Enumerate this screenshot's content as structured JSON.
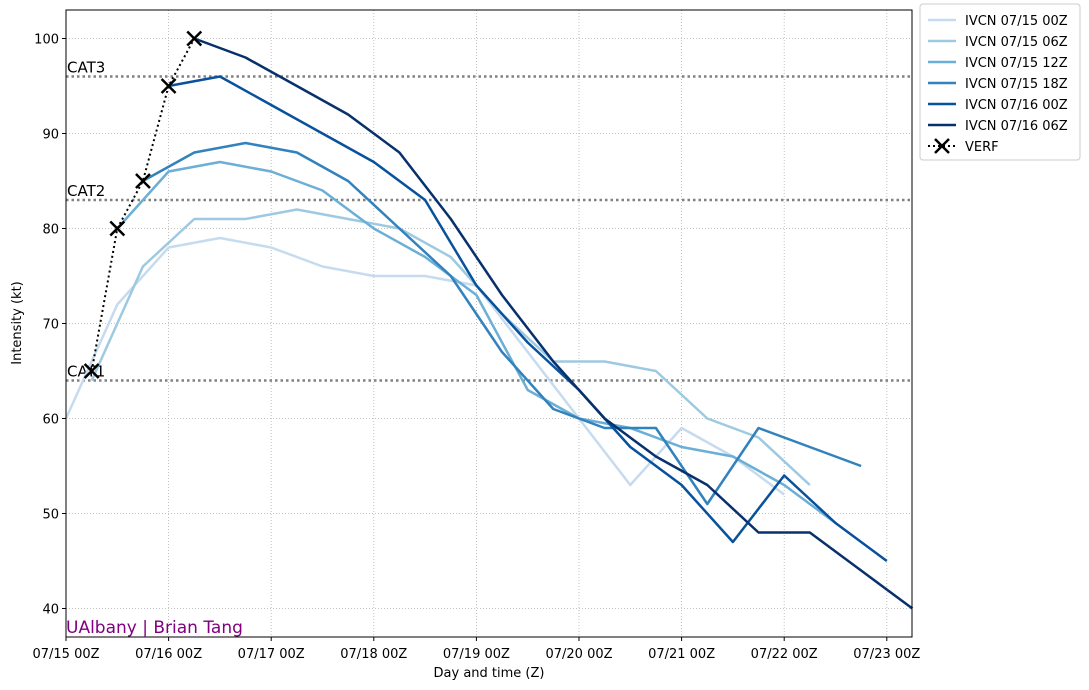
{
  "chart_data": {
    "type": "line",
    "title": "",
    "xlabel": "Day and time (Z)",
    "ylabel": "Intensity (kt)",
    "xlim": [
      "07/15 00Z",
      "07/23 06Z"
    ],
    "ylim": [
      37,
      103
    ],
    "x_ticks": [
      "07/15 00Z",
      "07/16 00Z",
      "07/17 00Z",
      "07/18 00Z",
      "07/19 00Z",
      "07/20 00Z",
      "07/21 00Z",
      "07/22 00Z",
      "07/23 00Z"
    ],
    "y_ticks": [
      40,
      50,
      60,
      70,
      80,
      90,
      100
    ],
    "grid": true,
    "legend_position": "outside-top-right",
    "thresholds": [
      {
        "label": "CAT1",
        "value": 64
      },
      {
        "label": "CAT2",
        "value": 83
      },
      {
        "label": "CAT3",
        "value": 96
      }
    ],
    "credit": "UAlbany | Brian Tang",
    "series": [
      {
        "name": "IVCN 07/15 00Z",
        "color": "#c6dbef",
        "x": [
          "07/15 00Z",
          "07/15 12Z",
          "07/16 00Z",
          "07/16 12Z",
          "07/17 00Z",
          "07/17 12Z",
          "07/18 00Z",
          "07/18 12Z",
          "07/19 00Z",
          "07/19 12Z",
          "07/20 00Z",
          "07/20 12Z",
          "07/21 00Z",
          "07/21 12Z",
          "07/22 00Z"
        ],
        "y": [
          60,
          72,
          78,
          79,
          78,
          76,
          75,
          75,
          74,
          67,
          60,
          53,
          59,
          56,
          52
        ]
      },
      {
        "name": "IVCN 07/15 06Z",
        "color": "#9ecae1",
        "x": [
          "07/15 06Z",
          "07/15 18Z",
          "07/16 06Z",
          "07/16 18Z",
          "07/17 06Z",
          "07/17 18Z",
          "07/18 06Z",
          "07/18 18Z",
          "07/19 06Z",
          "07/19 18Z",
          "07/20 06Z",
          "07/20 18Z",
          "07/21 06Z",
          "07/21 18Z",
          "07/22 06Z"
        ],
        "y": [
          64,
          76,
          81,
          81,
          82,
          81,
          80,
          77,
          71,
          66,
          66,
          65,
          60,
          58,
          53
        ]
      },
      {
        "name": "IVCN 07/15 12Z",
        "color": "#6baed6",
        "x": [
          "07/15 12Z",
          "07/16 00Z",
          "07/16 12Z",
          "07/17 00Z",
          "07/17 12Z",
          "07/18 00Z",
          "07/18 12Z",
          "07/19 00Z",
          "07/19 12Z",
          "07/20 00Z",
          "07/20 12Z",
          "07/21 00Z",
          "07/21 12Z",
          "07/22 00Z",
          "07/22 12Z"
        ],
        "y": [
          80,
          86,
          87,
          86,
          84,
          80,
          77,
          73,
          63,
          60,
          59,
          57,
          56,
          53,
          49
        ]
      },
      {
        "name": "IVCN 07/15 18Z",
        "color": "#3182bd",
        "x": [
          "07/15 18Z",
          "07/16 06Z",
          "07/16 18Z",
          "07/17 06Z",
          "07/17 18Z",
          "07/18 06Z",
          "07/18 18Z",
          "07/19 06Z",
          "07/19 18Z",
          "07/20 06Z",
          "07/20 18Z",
          "07/21 06Z",
          "07/21 18Z",
          "07/22 06Z",
          "07/22 18Z"
        ],
        "y": [
          85,
          88,
          89,
          88,
          85,
          80,
          75,
          67,
          61,
          59,
          59,
          51,
          59,
          57,
          55
        ]
      },
      {
        "name": "IVCN 07/16 00Z",
        "color": "#08519c",
        "x": [
          "07/16 00Z",
          "07/16 12Z",
          "07/17 00Z",
          "07/17 12Z",
          "07/18 00Z",
          "07/18 12Z",
          "07/19 00Z",
          "07/19 12Z",
          "07/20 00Z",
          "07/20 12Z",
          "07/21 00Z",
          "07/21 12Z",
          "07/22 00Z",
          "07/22 12Z",
          "07/23 00Z"
        ],
        "y": [
          95,
          96,
          93,
          90,
          87,
          83,
          74,
          68,
          63,
          57,
          53,
          47,
          54,
          49,
          45
        ]
      },
      {
        "name": "IVCN 07/16 06Z",
        "color": "#08306b",
        "x": [
          "07/16 06Z",
          "07/16 18Z",
          "07/17 06Z",
          "07/17 18Z",
          "07/18 06Z",
          "07/18 18Z",
          "07/19 06Z",
          "07/19 18Z",
          "07/20 06Z",
          "07/20 18Z",
          "07/21 06Z",
          "07/21 18Z",
          "07/22 06Z",
          "07/22 18Z",
          "07/23 06Z"
        ],
        "y": [
          100,
          98,
          95,
          92,
          88,
          81,
          73,
          66,
          60,
          56,
          53,
          48,
          48,
          44,
          40
        ]
      },
      {
        "name": "VERF",
        "color": "#000000",
        "style": "dotted-with-x-markers",
        "x": [
          "07/15 06Z",
          "07/15 12Z",
          "07/15 18Z",
          "07/16 00Z",
          "07/16 06Z"
        ],
        "y": [
          65,
          80,
          85,
          95,
          100
        ]
      }
    ]
  }
}
